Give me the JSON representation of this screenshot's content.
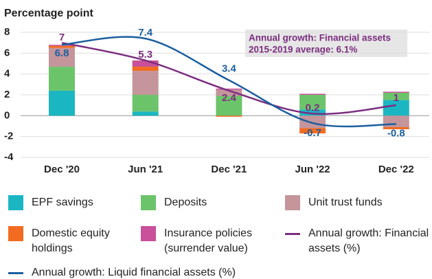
{
  "chart_data": {
    "type": "bar",
    "stacked": true,
    "y_label": "Percentage point",
    "categories": [
      "Dec '20",
      "Jun '21",
      "Dec '21",
      "Jun '22",
      "Dec '22"
    ],
    "ylim": [
      -4,
      8
    ],
    "yticks": [
      -4,
      -2,
      0,
      2,
      4,
      6,
      8
    ],
    "grid": true,
    "annotation": [
      "Annual growth: Financial assets",
      "2015-2019 average: 6.1%"
    ],
    "series": [
      {
        "name": "EPF savings",
        "color": "#1ab7c3",
        "values": [
          2.4,
          0.4,
          0.0,
          0.6,
          1.5
        ]
      },
      {
        "name": "Deposits",
        "color": "#6cc46a",
        "values": [
          2.3,
          1.6,
          1.9,
          1.4,
          0.7
        ]
      },
      {
        "name": "Unit trust funds",
        "color": "#c4959b",
        "values": [
          1.8,
          2.3,
          0.6,
          -1.2,
          -1.1
        ]
      },
      {
        "name": "Domestic equity holdings",
        "color": "#f26b21",
        "values": [
          0.2,
          0.4,
          -0.1,
          -0.5,
          -0.2
        ]
      },
      {
        "name": "Insurance policies (surrender value)",
        "color": "#c9509a",
        "values": [
          0.1,
          0.6,
          0.1,
          0.1,
          0.1
        ]
      },
      {
        "name": "Annual growth: Financial assets (%)",
        "type": "line",
        "color": "#7b2d7f",
        "values": [
          7.0,
          5.3,
          2.4,
          0.2,
          1.0
        ]
      },
      {
        "name": "Annual growth: Liquid financial assets (%)",
        "type": "line",
        "color": "#1b5e9f",
        "values": [
          6.8,
          7.4,
          3.4,
          -0.7,
          -0.8
        ]
      }
    ]
  }
}
